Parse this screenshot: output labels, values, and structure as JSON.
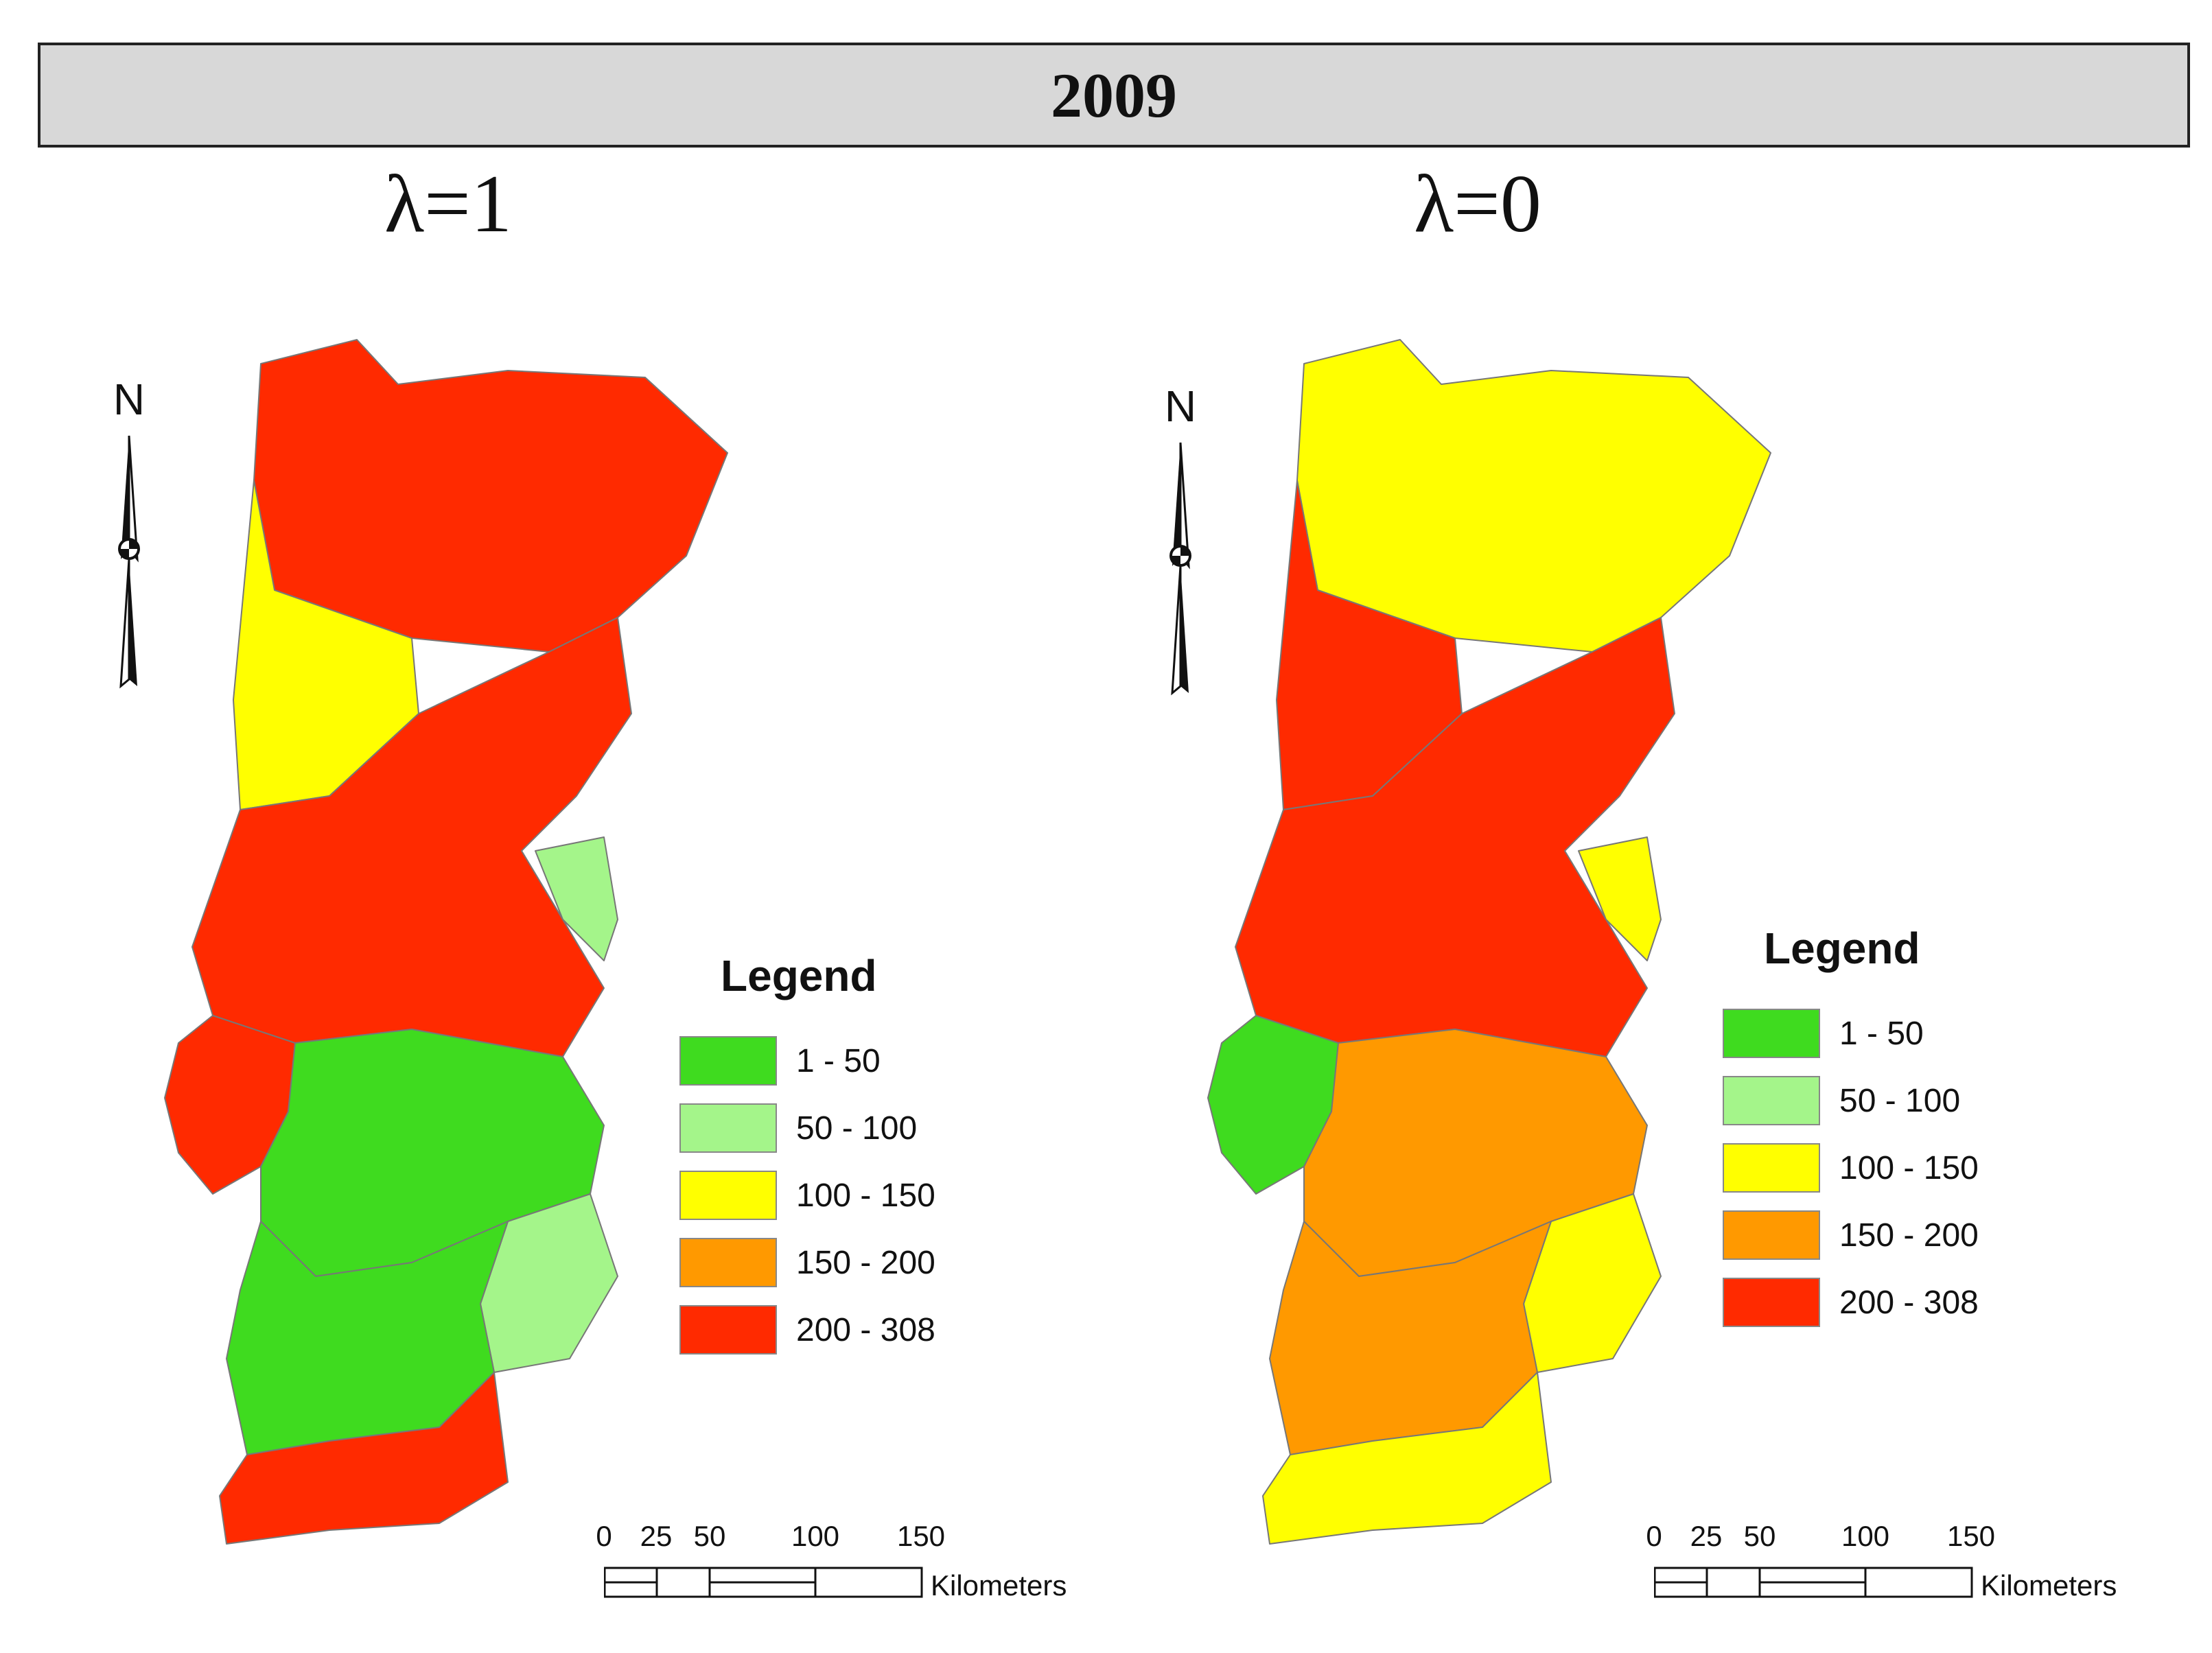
{
  "title": "2009",
  "panels": [
    {
      "label": "λ=1"
    },
    {
      "label": "λ=0"
    }
  ],
  "north_label": "N",
  "legend": {
    "title": "Legend",
    "classes": [
      {
        "label": "1 - 50",
        "color": "#3fdb1f"
      },
      {
        "label": "50 - 100",
        "color": "#a4f58a"
      },
      {
        "label": "100 - 150",
        "color": "#ffff00"
      },
      {
        "label": "150 - 200",
        "color": "#ff9900"
      },
      {
        "label": "200 - 308",
        "color": "#ff2a00"
      }
    ]
  },
  "scalebar": {
    "ticks": [
      "0",
      "25",
      "50",
      "100",
      "150"
    ],
    "unit": "Kilometers"
  },
  "region_colors": {
    "left": {
      "north": "#ff2a00",
      "northwest": "#ffff00",
      "center": "#ff2a00",
      "east_center": "#a4f58a",
      "lisbon": "#ff2a00",
      "alentejo": "#3fdb1f",
      "alentejo_east": "#a4f58a",
      "south": "#3fdb1f",
      "algarve": "#ff2a00"
    },
    "right": {
      "north": "#ffff00",
      "northwest": "#ff2a00",
      "center": "#ff2a00",
      "east_center": "#ffff00",
      "lisbon": "#3fdb1f",
      "alentejo": "#ff9900",
      "alentejo_east": "#ffff00",
      "south": "#ff9900",
      "algarve": "#ffff00"
    }
  }
}
